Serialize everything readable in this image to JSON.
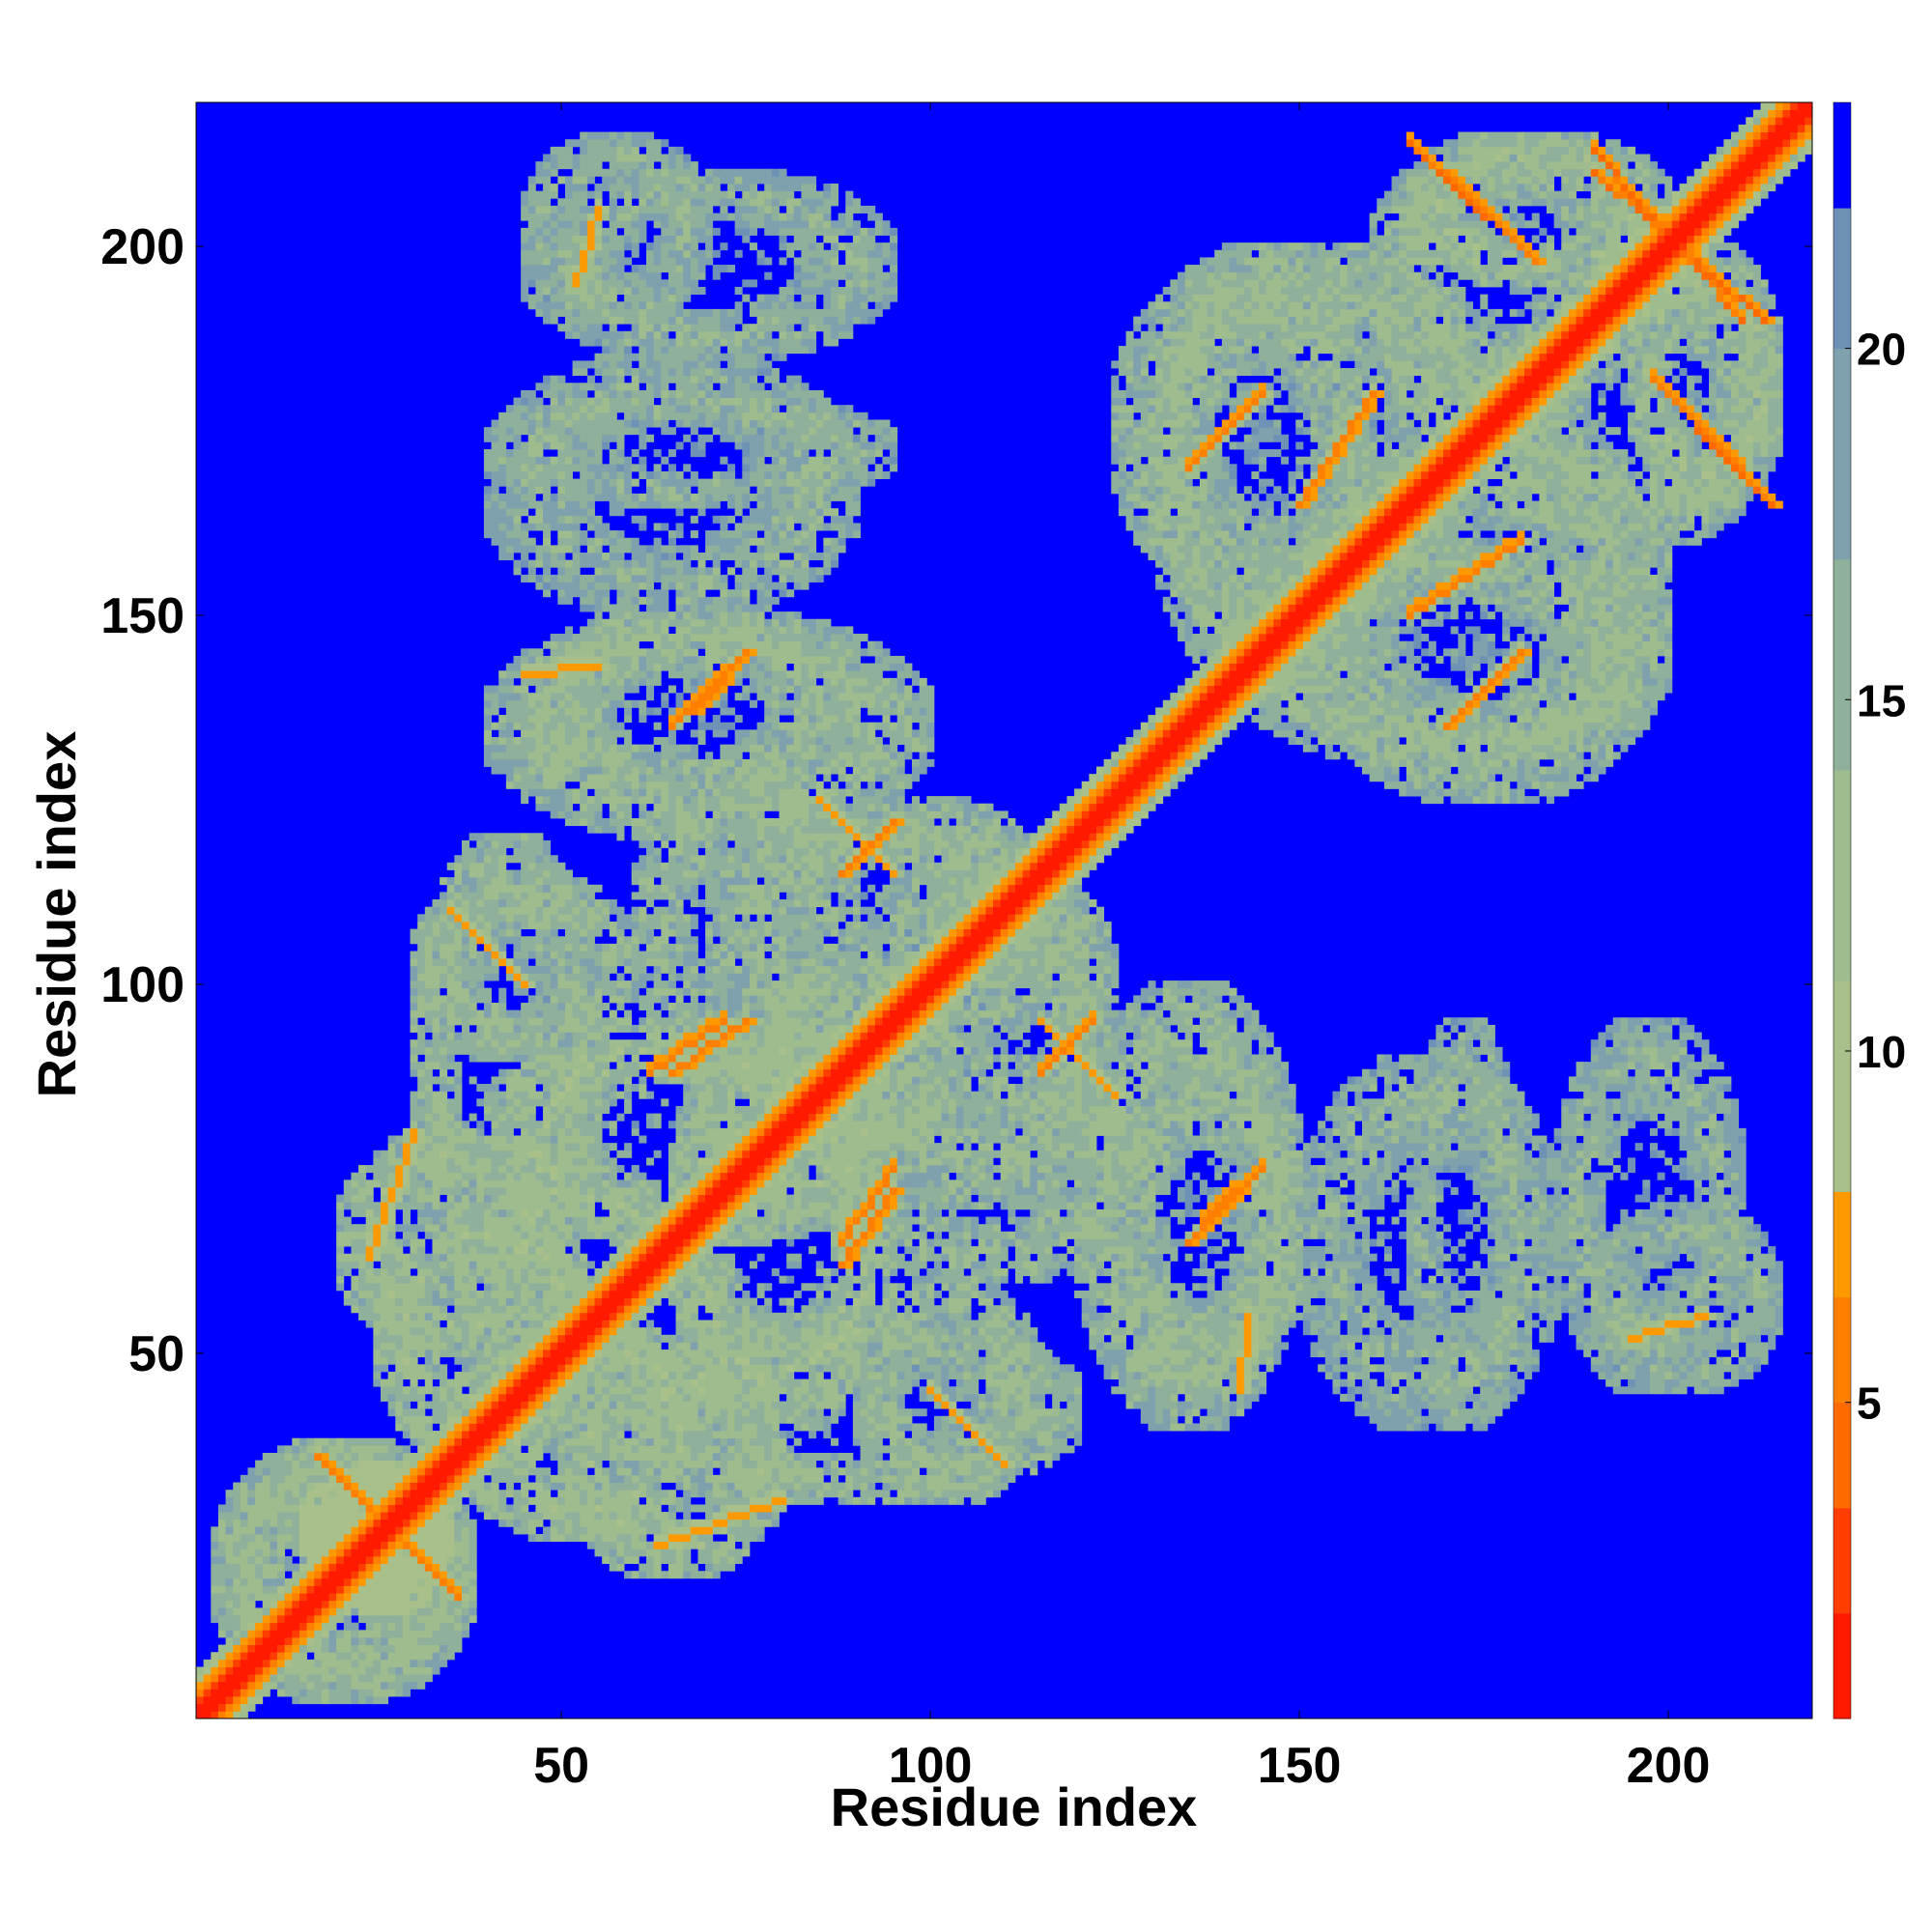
{
  "chart_data": {
    "type": "heatmap",
    "title": "",
    "xlabel": "Residue index",
    "ylabel": "Residue index",
    "xlim": [
      1,
      219
    ],
    "ylim": [
      1,
      219
    ],
    "xticks": [
      50,
      100,
      150,
      200
    ],
    "yticks": [
      50,
      100,
      150,
      200
    ],
    "grid": false,
    "legend": "none",
    "colorbar": {
      "position": "right",
      "ticks": [
        5,
        10,
        15,
        20
      ],
      "range": [
        0.5,
        23.5
      ],
      "bands": [
        {
          "from": 0.5,
          "to": 2.0,
          "color": "#ff1a00"
        },
        {
          "from": 2.0,
          "to": 3.5,
          "color": "#ff3d00"
        },
        {
          "from": 3.5,
          "to": 5.0,
          "color": "#ff6a00"
        },
        {
          "from": 5.0,
          "to": 6.5,
          "color": "#ff8000"
        },
        {
          "from": 6.5,
          "to": 8.0,
          "color": "#ff9900"
        },
        {
          "from": 8.0,
          "to": 11.0,
          "color": "#a9c08a"
        },
        {
          "from": 11.0,
          "to": 14.0,
          "color": "#9ebc8e"
        },
        {
          "from": 14.0,
          "to": 17.0,
          "color": "#8fb09a"
        },
        {
          "from": 17.0,
          "to": 20.0,
          "color": "#7fa0ad"
        },
        {
          "from": 20.0,
          "to": 22.0,
          "color": "#6e92b6"
        },
        {
          "from": 22.0,
          "to": 23.5,
          "color": "#0000ff"
        }
      ]
    },
    "colors": {
      "background": "#0000ff",
      "diagonal": "#ff1a00",
      "near_contact": "#ff8000",
      "mid": "#a9c08a",
      "far": "#7fa0ad"
    },
    "residue_count": 219,
    "diagonal_band_width": 6,
    "contact_clusters": [
      {
        "x": [
          1,
          8
        ],
        "y": [
          1,
          8
        ],
        "value": 3
      },
      {
        "x": [
          3,
          38
        ],
        "y": [
          3,
          38
        ],
        "value": 14
      },
      {
        "x": [
          15,
          35
        ],
        "y": [
          18,
          34
        ],
        "value": 6
      },
      {
        "x": [
          20,
          50
        ],
        "y": [
          50,
          80
        ],
        "value": 13
      },
      {
        "x": [
          35,
          70
        ],
        "y": [
          25,
          55
        ],
        "value": 13
      },
      {
        "x": [
          30,
          60
        ],
        "y": [
          90,
          115
        ],
        "value": 14
      },
      {
        "x": [
          40,
          95
        ],
        "y": [
          65,
          95
        ],
        "value": 13
      },
      {
        "x": [
          45,
          90
        ],
        "y": [
          125,
          150
        ],
        "value": 14
      },
      {
        "x": [
          40,
          95
        ],
        "y": [
          165,
          180
        ],
        "value": 15
      },
      {
        "x": [
          45,
          95
        ],
        "y": [
          185,
          210
        ],
        "value": 15
      },
      {
        "x": [
          55,
          120
        ],
        "y": [
          30,
          55
        ],
        "value": 14
      },
      {
        "x": [
          70,
          120
        ],
        "y": [
          90,
          125
        ],
        "value": 14
      },
      {
        "x": [
          85,
          130
        ],
        "y": [
          60,
          90
        ],
        "value": 14
      },
      {
        "x": [
          120,
          150
        ],
        "y": [
          40,
          100
        ],
        "value": 14
      },
      {
        "x": [
          125,
          175
        ],
        "y": [
          150,
          200
        ],
        "value": 14
      },
      {
        "x": [
          140,
          200
        ],
        "y": [
          130,
          160
        ],
        "value": 14
      },
      {
        "x": [
          150,
          185
        ],
        "y": [
          40,
          90
        ],
        "value": 15
      },
      {
        "x": [
          160,
          200
        ],
        "y": [
          180,
          215
        ],
        "value": 14
      },
      {
        "x": [
          190,
          215
        ],
        "y": [
          45,
          70
        ],
        "value": 15
      },
      {
        "x": [
          195,
          215
        ],
        "y": [
          165,
          200
        ],
        "value": 13
      }
    ],
    "contact_streaks": [
      {
        "x1": 17,
        "y1": 36,
        "x2": 35,
        "y2": 18,
        "value": 6
      },
      {
        "x1": 24,
        "y1": 63,
        "x2": 30,
        "y2": 80,
        "value": 7
      },
      {
        "x1": 35,
        "y1": 110,
        "x2": 45,
        "y2": 100,
        "value": 7
      },
      {
        "x1": 65,
        "y1": 88,
        "x2": 75,
        "y2": 95,
        "value": 6
      },
      {
        "x1": 68,
        "y1": 137,
        "x2": 75,
        "y2": 145,
        "value": 6
      },
      {
        "x1": 88,
        "y1": 62,
        "x2": 95,
        "y2": 72,
        "value": 6
      },
      {
        "x1": 88,
        "y1": 115,
        "x2": 95,
        "y2": 122,
        "value": 6
      },
      {
        "x1": 115,
        "y1": 95,
        "x2": 125,
        "y2": 85,
        "value": 7
      },
      {
        "x1": 135,
        "y1": 65,
        "x2": 142,
        "y2": 72,
        "value": 6
      },
      {
        "x1": 142,
        "y1": 45,
        "x2": 143,
        "y2": 55,
        "value": 7
      },
      {
        "x1": 150,
        "y1": 165,
        "x2": 160,
        "y2": 180,
        "value": 6
      },
      {
        "x1": 170,
        "y1": 135,
        "x2": 180,
        "y2": 145,
        "value": 6
      },
      {
        "x1": 170,
        "y1": 210,
        "x2": 182,
        "y2": 198,
        "value": 6
      },
      {
        "x1": 190,
        "y1": 210,
        "x2": 213,
        "y2": 190,
        "value": 5
      },
      {
        "x1": 204,
        "y1": 175,
        "x2": 214,
        "y2": 165,
        "value": 5
      },
      {
        "x1": 195,
        "y1": 52,
        "x2": 205,
        "y2": 55,
        "value": 7
      }
    ]
  }
}
